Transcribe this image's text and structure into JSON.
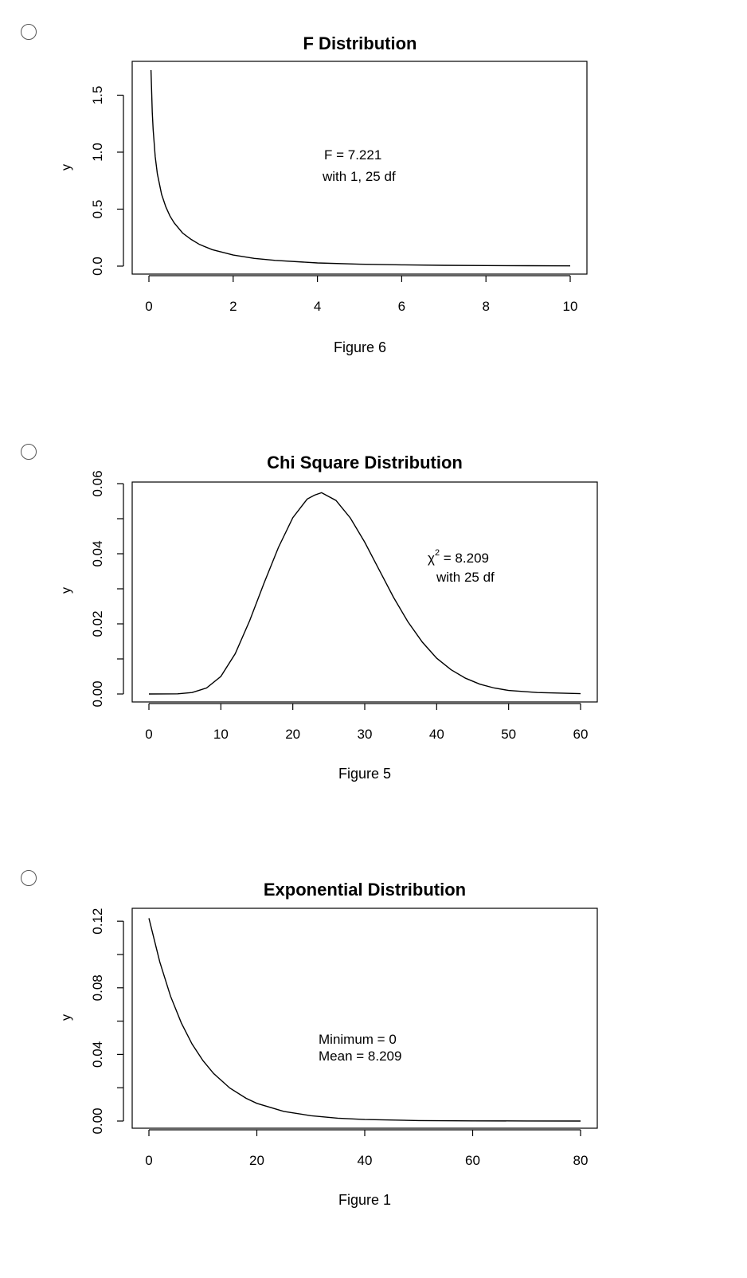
{
  "options": [
    {
      "radio_selected": false,
      "caption": "Figure 6",
      "annotation": [
        "F = 7.221",
        "with 1, 25 df"
      ],
      "chart_data": {
        "type": "line",
        "title": "F Distribution",
        "xlabel": "",
        "ylabel": "y",
        "xlim": [
          0,
          10
        ],
        "ylim": [
          0,
          1.72
        ],
        "x_ticks": [
          "0",
          "2",
          "4",
          "6",
          "8",
          "10"
        ],
        "y_ticks": [
          "0.0",
          "0.5",
          "1.0",
          "1.5"
        ],
        "series": [
          {
            "x": [
              0.05,
              0.08,
              0.1,
              0.15,
              0.2,
              0.3,
              0.4,
              0.5,
              0.6,
              0.8,
              1.0,
              1.2,
              1.5,
              2.0,
              2.5,
              3.0,
              4.0,
              5.0,
              6.0,
              7.0,
              8.0,
              9.0,
              10.0
            ],
            "y": [
              1.73,
              1.35,
              1.2,
              0.96,
              0.81,
              0.63,
              0.52,
              0.44,
              0.38,
              0.29,
              0.235,
              0.19,
              0.145,
              0.097,
              0.068,
              0.05,
              0.028,
              0.017,
              0.011,
              0.007,
              0.0047,
              0.0032,
              0.0022
            ]
          }
        ]
      }
    },
    {
      "radio_selected": false,
      "caption": "Figure 5",
      "annotation": [
        "χ",
        "2",
        " = 8.209",
        "with 25 df"
      ],
      "chart_data": {
        "type": "line",
        "title": "Chi Square Distribution",
        "xlabel": "",
        "ylabel": "y",
        "xlim": [
          0,
          60
        ],
        "ylim": [
          0,
          0.06
        ],
        "x_ticks": [
          "0",
          "10",
          "20",
          "30",
          "40",
          "50",
          "60"
        ],
        "y_ticks": [
          "0.00",
          "0.02",
          "0.04",
          "0.06"
        ],
        "series": [
          {
            "x": [
              0,
              4,
              6,
              8,
              10,
              12,
              14,
              16,
              18,
              20,
              22,
              23,
              24,
              26,
              28,
              30,
              32,
              34,
              36,
              38,
              40,
              42,
              44,
              46,
              48,
              50,
              54,
              60
            ],
            "y": [
              0,
              5e-05,
              0.0004,
              0.0017,
              0.005,
              0.0115,
              0.0209,
              0.0316,
              0.0418,
              0.0503,
              0.0556,
              0.0567,
              0.0574,
              0.0552,
              0.0502,
              0.0433,
              0.0354,
              0.0276,
              0.0206,
              0.0148,
              0.0102,
              0.0069,
              0.0045,
              0.0028,
              0.0017,
              0.001,
              0.0004,
              0.0001
            ]
          }
        ]
      }
    },
    {
      "radio_selected": false,
      "caption": "Figure 1",
      "annotation": [
        "Minimum = 0",
        "Mean = 8.209"
      ],
      "chart_data": {
        "type": "line",
        "title": "Exponential Distribution",
        "xlabel": "",
        "ylabel": "y",
        "xlim": [
          0,
          80
        ],
        "ylim": [
          0,
          0.122
        ],
        "x_ticks": [
          "0",
          "20",
          "40",
          "60",
          "80"
        ],
        "y_ticks": [
          "0.00",
          "0.04",
          "0.08",
          "0.12"
        ],
        "series": [
          {
            "x": [
              0,
              2,
              4,
              6,
              8,
              10,
              12,
              15,
              18,
              20,
              25,
              30,
              35,
              40,
              50,
              60,
              70,
              80
            ],
            "y": [
              0.1218,
              0.0956,
              0.075,
              0.0589,
              0.0462,
              0.0363,
              0.0285,
              0.0198,
              0.0137,
              0.0106,
              0.0058,
              0.0032,
              0.0017,
              0.00093,
              0.00028,
              8.4e-05,
              2.5e-05,
              7.6e-06
            ]
          }
        ]
      }
    }
  ]
}
